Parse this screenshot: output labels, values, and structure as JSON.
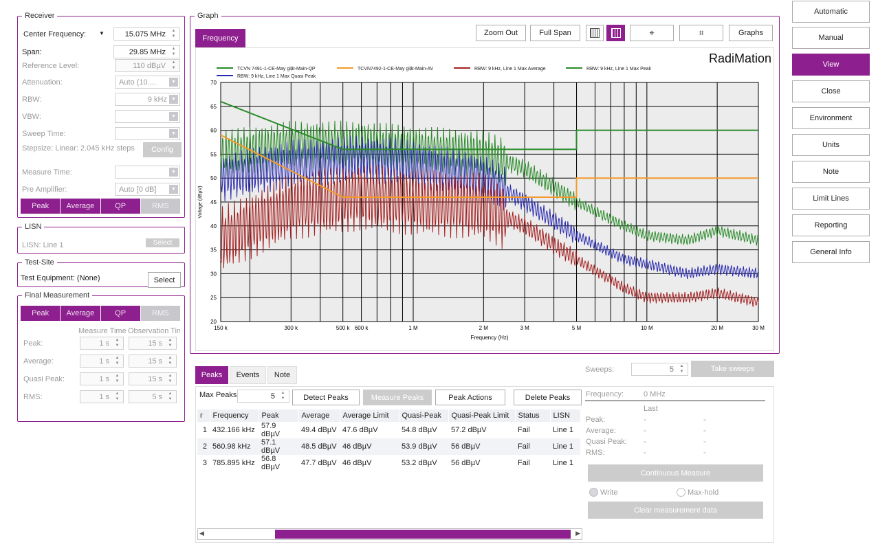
{
  "receiver": {
    "title": "Receiver",
    "center_freq_label": "Center Frequency:",
    "center_freq": "15.075 MHz",
    "span_label": "Span:",
    "span": "29.85 MHz",
    "ref_level_label": "Reference Level:",
    "ref_level": "110 dBµV",
    "attenuation_label": "Attenuation:",
    "attenuation": "Auto (10....",
    "rbw_label": "RBW:",
    "rbw": "9 kHz",
    "vbw_label": "VBW:",
    "vbw": "",
    "sweep_time_label": "Sweep Time:",
    "sweep_time": "",
    "stepsize": "Stepsize: Linear: 2.045 kHz steps",
    "config_button": "Config",
    "measure_time_label": "Measure Time:",
    "measure_time": "",
    "pre_amp_label": "Pre Amplifier:",
    "pre_amp": "Auto [0 dB]",
    "detectors": [
      "Peak",
      "Average",
      "QP",
      "RMS"
    ]
  },
  "lisn": {
    "title": "LISN",
    "label": "LISN: Line 1",
    "select": "Select"
  },
  "test_site": {
    "title": "Test-Site",
    "label": "Test Equipment: (None)",
    "select": "Select"
  },
  "final": {
    "title": "Final Measurement",
    "detectors": [
      "Peak",
      "Average",
      "QP",
      "RMS"
    ],
    "col_measure": "Measure Time",
    "col_observe": "Observation Tin",
    "rows": [
      {
        "label": "Peak:",
        "mt": "1 s",
        "ot": "15 s"
      },
      {
        "label": "Average:",
        "mt": "1 s",
        "ot": "15 s"
      },
      {
        "label": "Quasi Peak:",
        "mt": "1 s",
        "ot": "15 s"
      },
      {
        "label": "RMS:",
        "mt": "1 s",
        "ot": "5 s"
      }
    ]
  },
  "graph": {
    "title": "Graph",
    "tab": "Frequency",
    "zoom_out": "Zoom Out",
    "full_span": "Full Span",
    "graphs": "Graphs",
    "brand": "RadiMation"
  },
  "chart_data": {
    "type": "line",
    "xlabel": "Frequency (Hz)",
    "ylabel": "Voltage (dBµV)",
    "xscale": "log",
    "xlim": [
      150000,
      30000000
    ],
    "ylim": [
      20,
      70
    ],
    "yticks": [
      "70",
      "65",
      "60",
      "55",
      "50",
      "45",
      "40",
      "35",
      "30",
      "25",
      "20"
    ],
    "xticks": [
      {
        "f": 150000,
        "label": "150 k"
      },
      {
        "f": 300000,
        "label": "300 k"
      },
      {
        "f": 500000,
        "label": "500 k"
      },
      {
        "f": 600000,
        "label": "600 k"
      },
      {
        "f": 1000000,
        "label": "1 M"
      },
      {
        "f": 2000000,
        "label": "2 M"
      },
      {
        "f": 3000000,
        "label": "3 M"
      },
      {
        "f": 5000000,
        "label": "5 M"
      },
      {
        "f": 10000000,
        "label": "10 M"
      },
      {
        "f": 20000000,
        "label": "20 M"
      },
      {
        "f": 30000000,
        "label": "30 M"
      }
    ],
    "series": [
      {
        "name": "TCVN 7491-1-CE-May giặt-Main-QP",
        "color": "#2a8a2a",
        "x": [
          150000,
          500000,
          5000000,
          5000000,
          30000000
        ],
        "y": [
          66,
          56,
          56,
          60,
          60
        ]
      },
      {
        "name": "TCVN7492-1-CE-May giặt-Main-AV",
        "color": "#f39a2b",
        "x": [
          150000,
          500000,
          5000000,
          5000000,
          30000000
        ],
        "y": [
          59,
          46,
          46,
          50,
          50
        ]
      },
      {
        "name": "RBW: 9 kHz, Line 1 Max Average",
        "color": "#a42020",
        "x": [
          150000,
          300000,
          600000,
          1000000,
          2000000,
          3000000,
          5000000,
          8000000,
          10000000,
          15000000,
          20000000,
          30000000
        ],
        "y": [
          37,
          44,
          46,
          45,
          44,
          40,
          33,
          27,
          25,
          25,
          26,
          24
        ]
      },
      {
        "name": "RBW: 9 kHz, Line 1 Max Peak",
        "color": "#2a8a2a",
        "x": [
          150000,
          300000,
          600000,
          1000000,
          2000000,
          3000000,
          5000000,
          8000000,
          10000000,
          15000000,
          20000000,
          30000000
        ],
        "y": [
          55,
          57,
          57,
          56,
          55,
          52,
          45,
          40,
          38,
          37,
          39,
          37
        ]
      },
      {
        "name": "RBW: 9 kHz, Line 1 Max Quasi Peak",
        "color": "#2a2ab0",
        "x": [
          150000,
          300000,
          600000,
          1000000,
          2000000,
          3000000,
          5000000,
          8000000,
          10000000,
          15000000,
          20000000,
          30000000
        ],
        "y": [
          50,
          53,
          54,
          53,
          50,
          45,
          38,
          33,
          32,
          30,
          31,
          30
        ]
      }
    ]
  },
  "bottom": {
    "tabs": [
      "Peaks",
      "Events",
      "Note"
    ],
    "sweeps_label": "Sweeps:",
    "sweeps": "5",
    "take_sweeps": "Take sweeps",
    "max_peaks_label": "Max Peaks:",
    "max_peaks": "5",
    "detect_peaks": "Detect Peaks",
    "measure_peaks": "Measure Peaks",
    "peak_actions": "Peak Actions",
    "delete_peaks": "Delete Peaks",
    "headers": [
      "r",
      "Frequency",
      "Peak",
      "Average",
      "Average Limit",
      "Quasi-Peak",
      "Quasi-Peak Limit",
      "Status",
      "LISN"
    ],
    "rows": [
      [
        "1",
        "432.166 kHz",
        "57.9 dBµV",
        "49.4 dBµV",
        "47.6 dBµV",
        "54.8 dBµV",
        "57.2 dBµV",
        "Fail",
        "Line 1"
      ],
      [
        "2",
        "560.98 kHz",
        "57.1 dBµV",
        "48.5 dBµV",
        "46 dBµV",
        "53.9 dBµV",
        "56 dBµV",
        "Fail",
        "Line 1"
      ],
      [
        "3",
        "785.895 kHz",
        "56.8 dBµV",
        "47.7 dBµV",
        "46 dBµV",
        "53.2 dBµV",
        "56 dBµV",
        "Fail",
        "Line 1"
      ]
    ]
  },
  "readout": {
    "frequency_label": "Frequency:",
    "frequency": "0 MHz",
    "last": "Last",
    "peak": "Peak:",
    "average": "Average:",
    "quasi_peak": "Quasi Peak:",
    "rms": "RMS:",
    "dash": "-",
    "continuous": "Continuous Measure",
    "write": "Write",
    "maxhold": "Max-hold",
    "clear": "Clear measurement data"
  },
  "nav": [
    "Automatic",
    "Manual",
    "View",
    "Close",
    "Environment",
    "Units",
    "Note",
    "Limit Lines",
    "Reporting",
    "General Info"
  ]
}
